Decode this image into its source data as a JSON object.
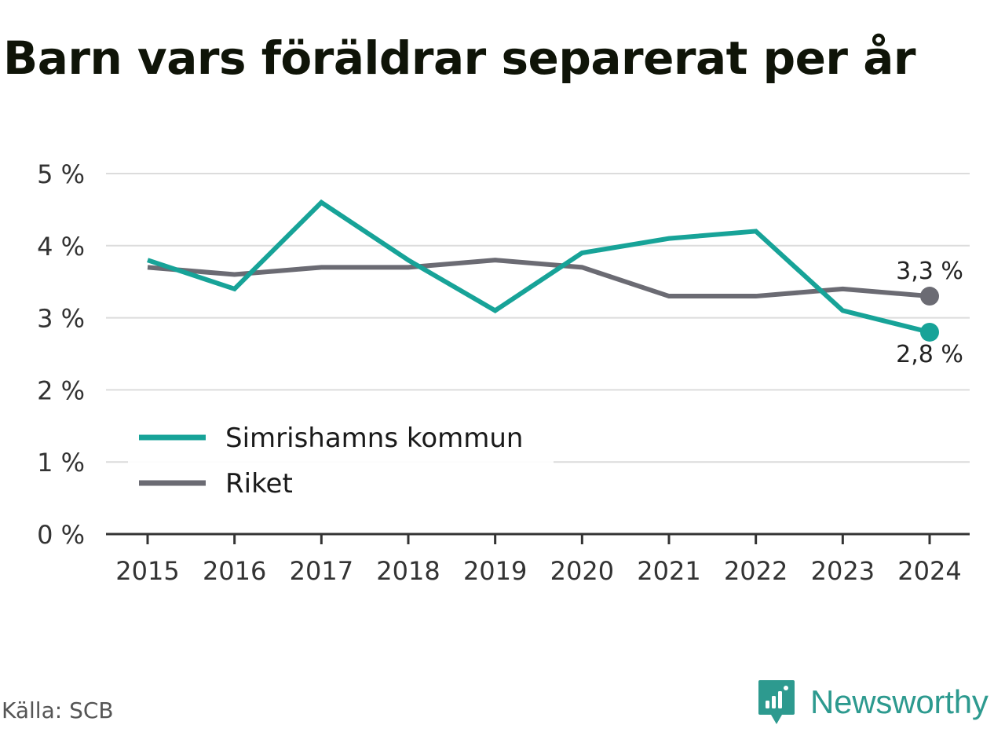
{
  "title": "Barn vars föräldrar separerat per år",
  "source": "Källa: SCB",
  "brand": {
    "name": "Newsworthy",
    "icon": "newsworthy-logo-icon",
    "color": "#2d9a8f"
  },
  "chart_data": {
    "type": "line",
    "title": "Barn vars föräldrar separerat per år",
    "xlabel": "",
    "ylabel": "",
    "x": [
      "2015",
      "2016",
      "2017",
      "2018",
      "2019",
      "2020",
      "2021",
      "2022",
      "2023",
      "2024"
    ],
    "ylim": [
      0,
      5
    ],
    "yticks": [
      0,
      1,
      2,
      3,
      4,
      5
    ],
    "ytick_labels": [
      "0 %",
      "1 %",
      "2 %",
      "3 %",
      "4 %",
      "5 %"
    ],
    "grid": true,
    "legend_position": "lower-left",
    "series": [
      {
        "name": "Simrishamns kommun",
        "color": "#17a398",
        "values": [
          3.8,
          3.4,
          4.6,
          3.8,
          3.1,
          3.9,
          4.1,
          4.2,
          3.1,
          2.8
        ],
        "end_label": "2,8 %"
      },
      {
        "name": "Riket",
        "color": "#6b6b73",
        "values": [
          3.7,
          3.6,
          3.7,
          3.7,
          3.8,
          3.7,
          3.3,
          3.3,
          3.4,
          3.3
        ],
        "end_label": "3,3 %"
      }
    ]
  }
}
